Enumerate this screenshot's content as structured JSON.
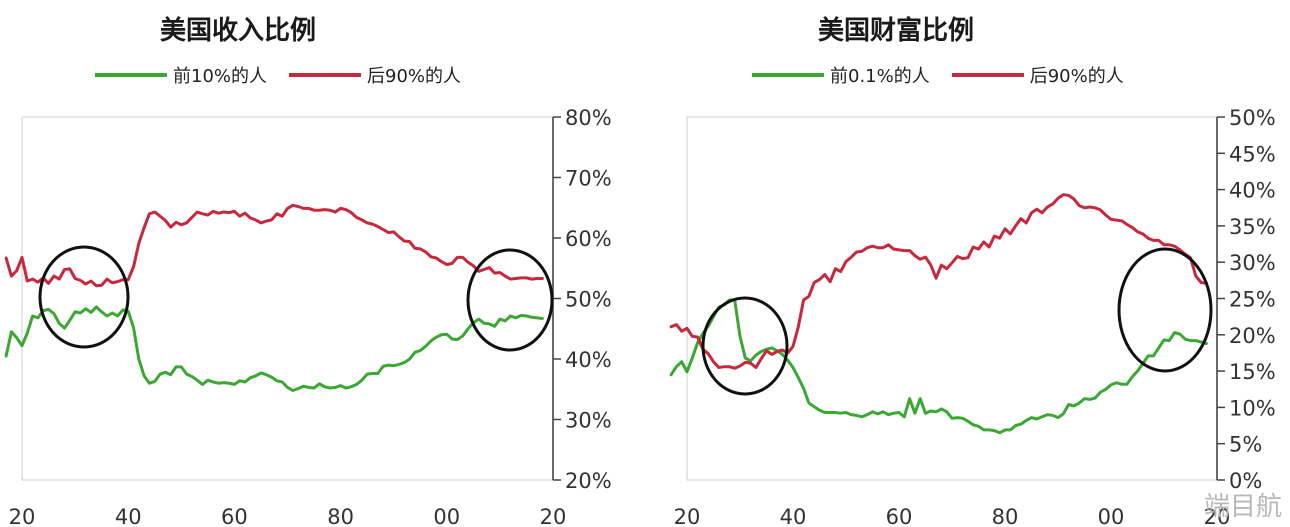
{
  "chart_data": [
    {
      "type": "line",
      "title": "美国收入比例",
      "xlabel": "",
      "ylabel": "",
      "xlim": [
        1920,
        2020
      ],
      "ylim": [
        20,
        80
      ],
      "x_ticks": [
        "20",
        "40",
        "60",
        "80",
        "00",
        "20"
      ],
      "y_ticks": [
        "80%",
        "70%",
        "60%",
        "50%",
        "40%",
        "30%",
        "20%"
      ],
      "y_axis_side": "right",
      "grid": false,
      "legend_position": "top",
      "series": [
        {
          "name": "前10%的人",
          "color": "#3aa832",
          "x": [
            1917,
            1918,
            1919,
            1920,
            1921,
            1922,
            1923,
            1924,
            1925,
            1926,
            1927,
            1928,
            1929,
            1930,
            1931,
            1932,
            1933,
            1934,
            1935,
            1936,
            1937,
            1938,
            1939,
            1940,
            1941,
            1942,
            1943,
            1944,
            1945,
            1946,
            1947,
            1948,
            1949,
            1950,
            1951,
            1952,
            1953,
            1954,
            1955,
            1956,
            1957,
            1958,
            1959,
            1960,
            1961,
            1962,
            1963,
            1964,
            1965,
            1966,
            1967,
            1968,
            1969,
            1970,
            1971,
            1972,
            1973,
            1974,
            1975,
            1976,
            1977,
            1978,
            1979,
            1980,
            1981,
            1982,
            1983,
            1984,
            1985,
            1986,
            1987,
            1988,
            1989,
            1990,
            1991,
            1992,
            1993,
            1994,
            1995,
            1996,
            1997,
            1998,
            1999,
            2000,
            2001,
            2002,
            2003,
            2004,
            2005,
            2006,
            2007,
            2008,
            2009,
            2010,
            2011,
            2012,
            2013,
            2014,
            2015,
            2016,
            2017,
            2018
          ],
          "values": [
            40.5,
            44.5,
            43.5,
            42.2,
            44.3,
            47.1,
            46.8,
            48.0,
            48.2,
            47.5,
            45.9,
            45.1,
            46.4,
            47.8,
            47.6,
            48.3,
            47.7,
            48.6,
            47.8,
            47.1,
            47.6,
            47.1,
            48.1,
            47.9,
            45.2,
            40.0,
            37.2,
            36.0,
            36.3,
            37.5,
            37.8,
            37.4,
            38.7,
            38.7,
            37.5,
            37.1,
            36.5,
            35.8,
            36.5,
            36.2,
            36.0,
            36.1,
            36.0,
            35.8,
            36.4,
            36.2,
            36.9,
            37.2,
            37.7,
            37.4,
            37.0,
            36.4,
            36.2,
            35.3,
            34.8,
            35.1,
            35.5,
            35.3,
            35.2,
            35.9,
            35.4,
            35.2,
            35.3,
            35.6,
            35.2,
            35.4,
            35.8,
            36.5,
            37.5,
            37.6,
            37.6,
            38.8,
            39.0,
            38.9,
            39.1,
            39.4,
            40.0,
            41.1,
            41.4,
            42.1,
            43.0,
            43.6,
            44.0,
            44.1,
            43.3,
            43.2,
            43.8,
            45.0,
            46.0,
            46.6,
            45.9,
            45.8,
            45.4,
            46.6,
            46.3,
            47.1,
            46.8,
            47.2,
            47.1,
            46.9,
            46.8,
            46.7
          ]
        },
        {
          "name": "后90%的人",
          "color": "#c8283c",
          "x": [
            1917,
            1918,
            1919,
            1920,
            1921,
            1922,
            1923,
            1924,
            1925,
            1926,
            1927,
            1928,
            1929,
            1930,
            1931,
            1932,
            1933,
            1934,
            1935,
            1936,
            1937,
            1938,
            1939,
            1940,
            1941,
            1942,
            1943,
            1944,
            1945,
            1946,
            1947,
            1948,
            1949,
            1950,
            1951,
            1952,
            1953,
            1954,
            1955,
            1956,
            1957,
            1958,
            1959,
            1960,
            1961,
            1962,
            1963,
            1964,
            1965,
            1966,
            1967,
            1968,
            1969,
            1970,
            1971,
            1972,
            1973,
            1974,
            1975,
            1976,
            1977,
            1978,
            1979,
            1980,
            1981,
            1982,
            1983,
            1984,
            1985,
            1986,
            1987,
            1988,
            1989,
            1990,
            1991,
            1992,
            1993,
            1994,
            1995,
            1996,
            1997,
            1998,
            1999,
            2000,
            2001,
            2002,
            2003,
            2004,
            2005,
            2006,
            2007,
            2008,
            2009,
            2010,
            2011,
            2012,
            2013,
            2014,
            2015,
            2016,
            2017,
            2018
          ],
          "values": [
            56.7,
            53.7,
            54.6,
            56.8,
            52.9,
            53.2,
            52.7,
            53.4,
            52.5,
            53.7,
            53.2,
            54.8,
            54.9,
            53.3,
            53.0,
            52.4,
            52.9,
            52.1,
            52.2,
            53.2,
            52.6,
            52.8,
            53.1,
            53.1,
            55.2,
            59.1,
            61.7,
            64.0,
            64.3,
            63.6,
            62.9,
            61.8,
            62.6,
            62.2,
            62.5,
            63.4,
            64.3,
            64.0,
            63.8,
            64.4,
            64.1,
            64.3,
            64.2,
            64.4,
            63.6,
            64.1,
            63.3,
            63.0,
            62.5,
            62.8,
            63.0,
            64.0,
            63.6,
            64.9,
            65.4,
            65.2,
            64.9,
            64.9,
            64.6,
            64.6,
            64.7,
            64.6,
            64.3,
            64.9,
            64.7,
            64.2,
            63.4,
            63.0,
            62.5,
            62.3,
            61.9,
            61.4,
            60.9,
            61.0,
            60.2,
            59.5,
            59.4,
            58.3,
            58.2,
            57.7,
            56.9,
            56.7,
            56.1,
            55.6,
            55.8,
            56.8,
            56.8,
            56.0,
            55.4,
            54.5,
            54.8,
            55.1,
            54.2,
            54.3,
            53.7,
            53.2,
            53.3,
            53.4,
            53.4,
            53.2,
            53.3,
            53.3
          ]
        }
      ]
    },
    {
      "type": "line",
      "title": "美国财富比例",
      "xlabel": "",
      "ylabel": "",
      "xlim": [
        1920,
        2020
      ],
      "ylim": [
        0,
        50
      ],
      "x_ticks": [
        "20",
        "40",
        "60",
        "80",
        "00",
        "20"
      ],
      "y_ticks": [
        "50%",
        "45%",
        "40%",
        "35%",
        "30%",
        "25%",
        "20%",
        "15%",
        "10%",
        "5%",
        "0%"
      ],
      "y_axis_side": "right",
      "grid": false,
      "legend_position": "top",
      "series": [
        {
          "name": "前0.1%的人",
          "color": "#3aa832",
          "x": [
            1917,
            1918,
            1919,
            1920,
            1921,
            1922,
            1923,
            1924,
            1925,
            1926,
            1927,
            1928,
            1929,
            1930,
            1931,
            1932,
            1933,
            1934,
            1935,
            1936,
            1937,
            1938,
            1939,
            1940,
            1941,
            1942,
            1943,
            1944,
            1945,
            1946,
            1947,
            1948,
            1949,
            1950,
            1951,
            1952,
            1953,
            1954,
            1955,
            1956,
            1957,
            1958,
            1959,
            1960,
            1961,
            1962,
            1963,
            1964,
            1965,
            1966,
            1967,
            1968,
            1969,
            1970,
            1971,
            1972,
            1973,
            1974,
            1975,
            1976,
            1977,
            1978,
            1979,
            1980,
            1981,
            1982,
            1983,
            1984,
            1985,
            1986,
            1987,
            1988,
            1989,
            1990,
            1991,
            1992,
            1993,
            1994,
            1995,
            1996,
            1997,
            1998,
            1999,
            2000,
            2001,
            2002,
            2003,
            2004,
            2005,
            2006,
            2007,
            2008,
            2009,
            2010,
            2011,
            2012,
            2013,
            2014,
            2015,
            2016,
            2017,
            2018
          ],
          "values": [
            14.5,
            15.6,
            16.3,
            14.9,
            16.8,
            18.9,
            20.2,
            21.2,
            22.5,
            23.8,
            24.1,
            24.8,
            24.8,
            19.8,
            16.8,
            16.4,
            17.2,
            17.7,
            18.0,
            18.2,
            17.8,
            17.3,
            16.5,
            15.5,
            14.1,
            12.6,
            10.6,
            10.1,
            9.6,
            9.3,
            9.3,
            9.3,
            9.2,
            9.3,
            9.0,
            8.9,
            8.7,
            9.0,
            9.4,
            9.1,
            9.4,
            9.0,
            9.2,
            9.3,
            8.7,
            11.2,
            9.2,
            11.2,
            9.2,
            9.5,
            9.4,
            9.8,
            9.4,
            8.5,
            8.6,
            8.5,
            8.1,
            7.6,
            7.4,
            6.9,
            6.9,
            6.8,
            6.5,
            6.9,
            6.9,
            7.5,
            7.7,
            8.2,
            8.6,
            8.4,
            8.7,
            9.0,
            8.9,
            8.6,
            9.1,
            10.4,
            10.2,
            10.6,
            11.2,
            11.1,
            11.3,
            12.1,
            12.5,
            13.1,
            13.4,
            13.2,
            13.2,
            14.2,
            15.0,
            16.0,
            17.1,
            17.1,
            18.2,
            19.3,
            19.2,
            20.3,
            20.1,
            19.4,
            19.2,
            19.2,
            19.0,
            18.8
          ]
        },
        {
          "name": "后90%的人",
          "color": "#c8283c",
          "x": [
            1917,
            1918,
            1919,
            1920,
            1921,
            1922,
            1923,
            1924,
            1925,
            1926,
            1927,
            1928,
            1929,
            1930,
            1931,
            1932,
            1933,
            1934,
            1935,
            1936,
            1937,
            1938,
            1939,
            1940,
            1941,
            1942,
            1943,
            1944,
            1945,
            1946,
            1947,
            1948,
            1949,
            1950,
            1951,
            1952,
            1953,
            1954,
            1955,
            1956,
            1957,
            1958,
            1959,
            1960,
            1961,
            1962,
            1963,
            1964,
            1965,
            1966,
            1967,
            1968,
            1969,
            1970,
            1971,
            1972,
            1973,
            1974,
            1975,
            1976,
            1977,
            1978,
            1979,
            1980,
            1981,
            1982,
            1983,
            1984,
            1985,
            1986,
            1987,
            1988,
            1989,
            1990,
            1991,
            1992,
            1993,
            1994,
            1995,
            1996,
            1997,
            1998,
            1999,
            2000,
            2001,
            2002,
            2003,
            2004,
            2005,
            2006,
            2007,
            2008,
            2009,
            2010,
            2011,
            2012,
            2013,
            2014,
            2015,
            2016,
            2017,
            2018
          ],
          "values": [
            21.1,
            21.4,
            20.5,
            20.9,
            19.8,
            19.7,
            18.0,
            17.4,
            16.3,
            15.5,
            15.6,
            15.6,
            15.4,
            15.7,
            16.2,
            16.1,
            15.5,
            16.7,
            17.8,
            17.3,
            17.7,
            17.9,
            17.5,
            18.4,
            21.1,
            24.8,
            25.3,
            27.2,
            27.6,
            28.3,
            27.3,
            29.1,
            28.7,
            30.1,
            30.7,
            31.4,
            31.5,
            32.0,
            32.2,
            32.0,
            32.0,
            32.4,
            31.8,
            31.7,
            31.6,
            31.6,
            30.9,
            30.4,
            30.7,
            29.6,
            27.8,
            29.6,
            29.1,
            29.9,
            30.8,
            30.5,
            30.6,
            32.1,
            31.8,
            32.8,
            32.1,
            33.6,
            33.3,
            34.6,
            33.9,
            35.0,
            36.0,
            35.4,
            36.8,
            37.3,
            36.8,
            37.6,
            38.0,
            38.8,
            39.3,
            39.2,
            38.7,
            37.8,
            37.5,
            37.6,
            37.5,
            37.2,
            36.5,
            35.9,
            35.8,
            35.7,
            35.2,
            34.8,
            34.2,
            33.9,
            33.3,
            33.0,
            33.0,
            32.4,
            32.4,
            32.2,
            31.7,
            31.1,
            30.6,
            28.1,
            27.2,
            27.1
          ]
        }
      ]
    }
  ],
  "watermark": "端目航"
}
